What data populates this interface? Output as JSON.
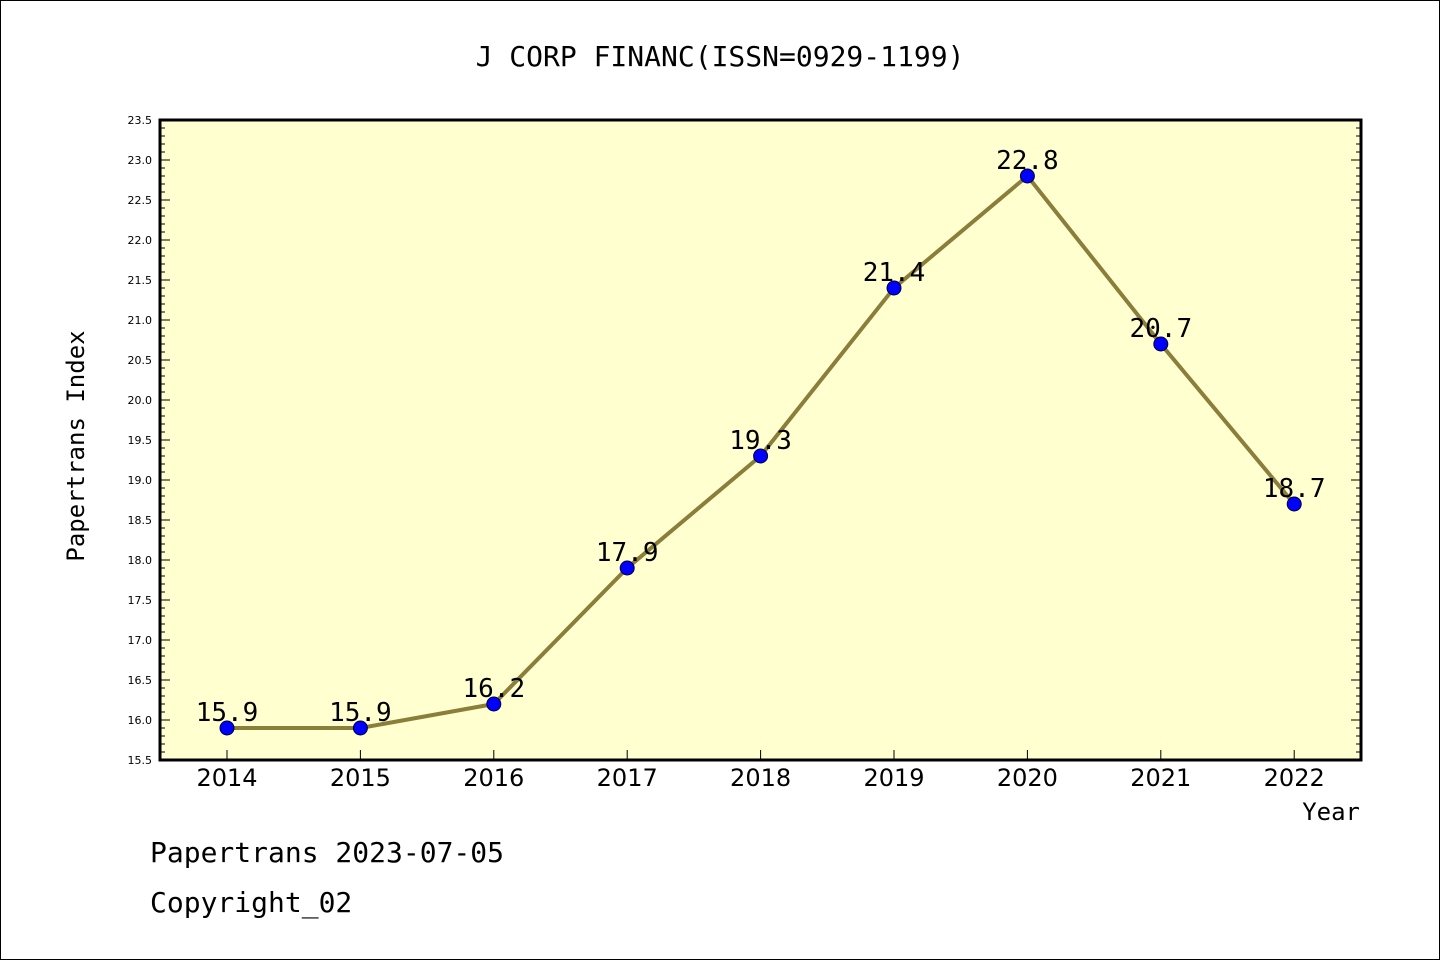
{
  "chart_data": {
    "type": "line",
    "title": "J CORP FINANC(ISSN=0929-1199)",
    "xlabel": "Year",
    "ylabel": "Papertrans Index",
    "categories": [
      "2014",
      "2015",
      "2016",
      "2017",
      "2018",
      "2019",
      "2020",
      "2021",
      "2022"
    ],
    "values": [
      15.9,
      15.9,
      16.2,
      17.9,
      19.3,
      21.4,
      22.8,
      20.7,
      18.7
    ],
    "data_labels": [
      "15.9",
      "15.9",
      "16.2",
      "17.9",
      "19.3",
      "21.4",
      "22.8",
      "20.7",
      "18.7"
    ],
    "ylim": [
      15.5,
      23.5
    ],
    "yticks": [
      "15.5",
      "16.0",
      "16.5",
      "17.0",
      "17.5",
      "18.0",
      "18.5",
      "19.0",
      "19.5",
      "20.0",
      "20.5",
      "21.0",
      "21.5",
      "22.0",
      "22.5",
      "23.0",
      "23.5"
    ],
    "grid": false,
    "line_color": "#8b7d3a",
    "marker_color": "#0000ff",
    "plot_background": "#ffffd0"
  },
  "footer": {
    "line1": "Papertrans 2023-07-05",
    "line2": "Copyright_02"
  }
}
